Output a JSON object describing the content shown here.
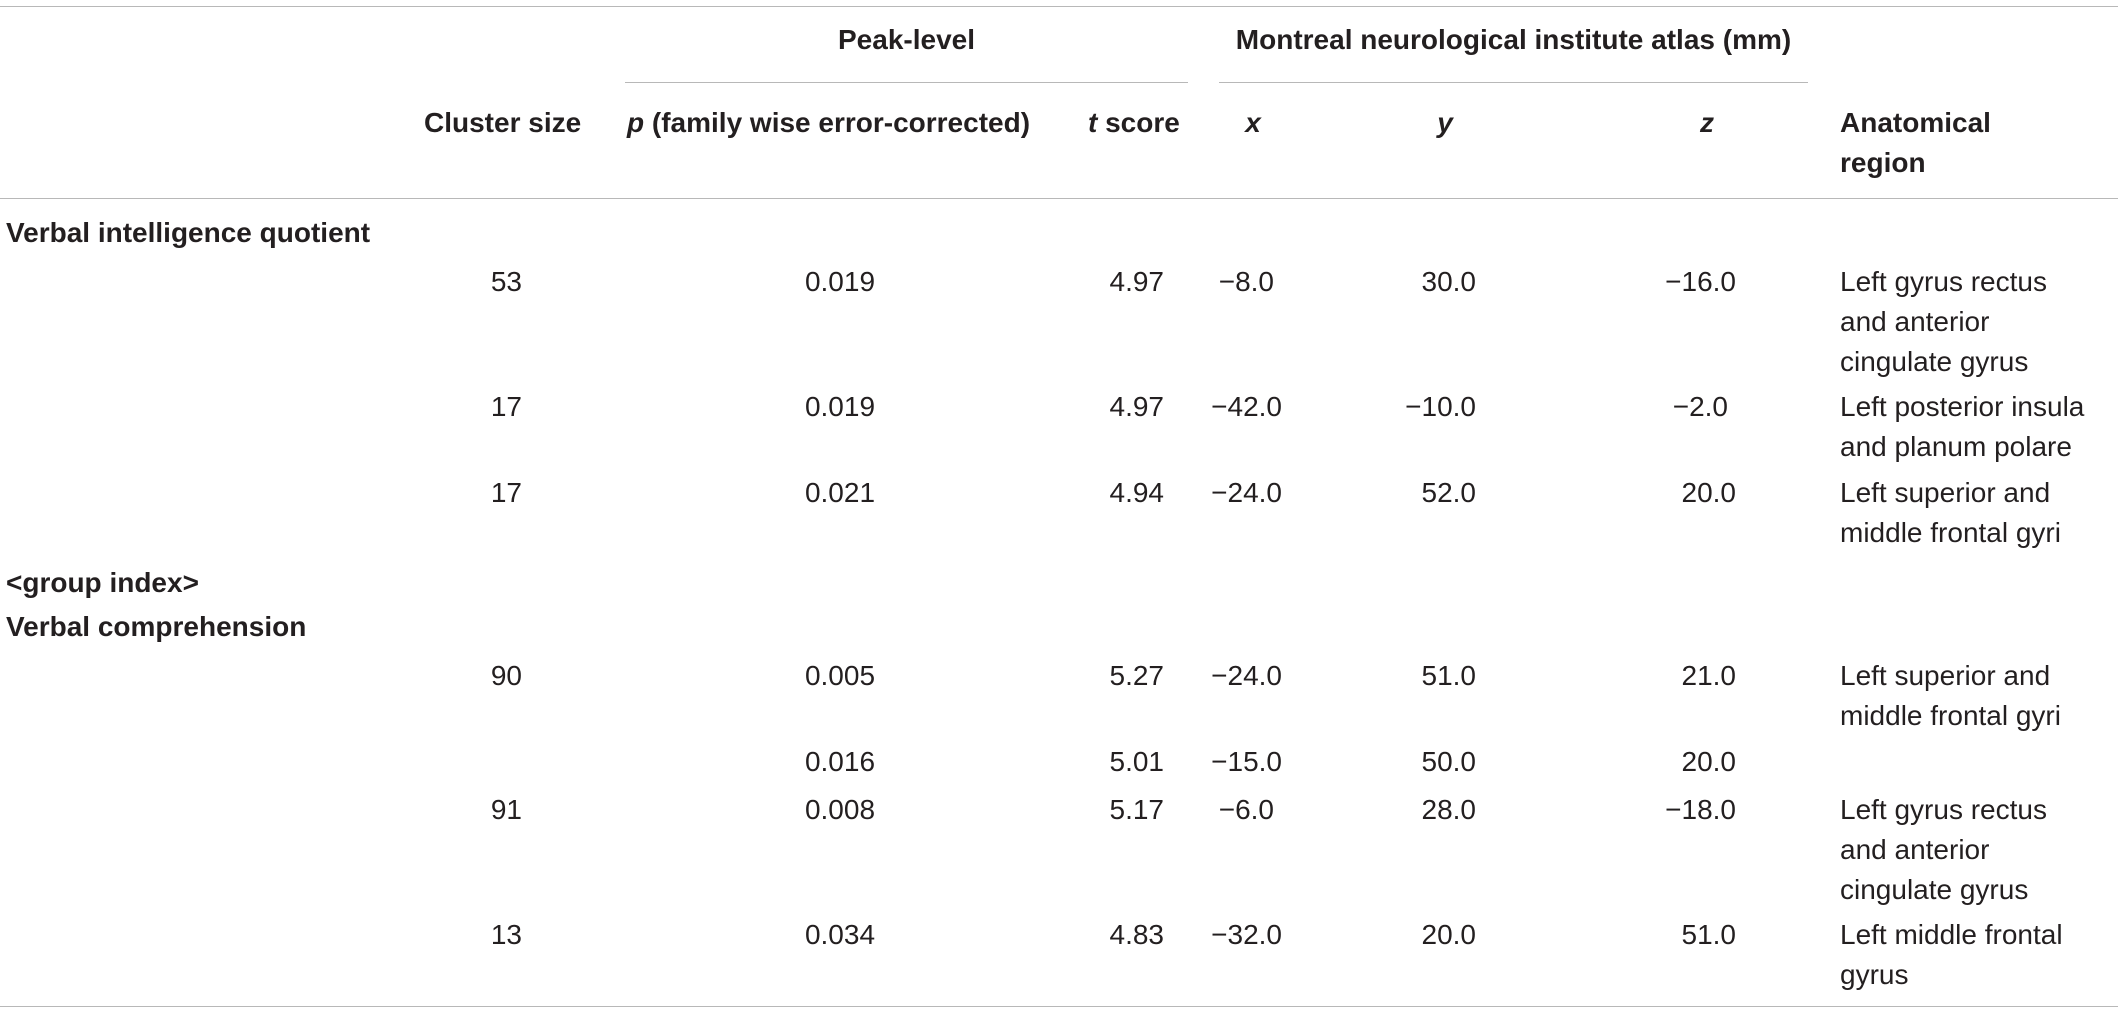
{
  "header": {
    "peak_level": "Peak-level",
    "mni_atlas": "Montreal neurological institute atlas (mm)",
    "cluster_size": "Cluster size",
    "p_letter": "p",
    "p_rest": " (family wise error-corrected)",
    "t_letter": "t",
    "t_rest": " score",
    "x": "x",
    "y": "y",
    "z": "z",
    "region_line1": "Anatomical",
    "region_line2": "region"
  },
  "sections": [
    {
      "title": "Verbal intelligence quotient",
      "rows": [
        {
          "cluster": "53",
          "p": "0.019",
          "t": "4.97",
          "x": "−8.0",
          "y": "30.0",
          "z": "−16.0",
          "region": [
            "Left gyrus rectus",
            "and anterior",
            "cingulate gyrus"
          ]
        },
        {
          "cluster": "17",
          "p": "0.019",
          "t": "4.97",
          "x": "−42.0",
          "y": "−10.0",
          "z": "−2.0",
          "region": [
            "Left posterior insula",
            "and planum polare"
          ]
        },
        {
          "cluster": "17",
          "p": "0.021",
          "t": "4.94",
          "x": "−24.0",
          "y": "52.0",
          "z": "20.0",
          "region": [
            "Left superior and",
            "middle frontal gyri"
          ]
        }
      ]
    },
    {
      "pre_title": "<group index>",
      "title": "Verbal comprehension",
      "rows": [
        {
          "cluster": "90",
          "p": "0.005",
          "t": "5.27",
          "x": "−24.0",
          "y": "51.0",
          "z": "21.0",
          "region": [
            "Left superior and",
            "middle frontal gyri"
          ]
        },
        {
          "cluster": "",
          "p": "0.016",
          "t": "5.01",
          "x": "−15.0",
          "y": "50.0",
          "z": "20.0",
          "region": []
        },
        {
          "cluster": "91",
          "p": "0.008",
          "t": "5.17",
          "x": "−6.0",
          "y": "28.0",
          "z": "−18.0",
          "region": [
            "Left gyrus rectus",
            "and anterior",
            "cingulate gyrus"
          ]
        },
        {
          "cluster": "13",
          "p": "0.034",
          "t": "4.83",
          "x": "−32.0",
          "y": "20.0",
          "z": "51.0",
          "region": [
            "Left middle frontal",
            "gyrus"
          ]
        }
      ]
    }
  ]
}
